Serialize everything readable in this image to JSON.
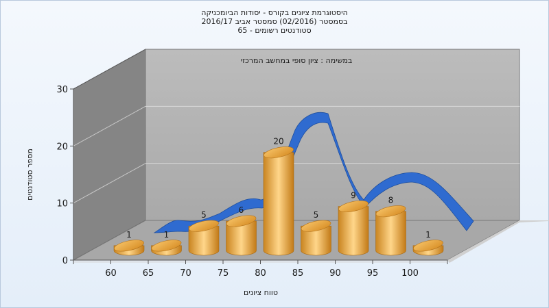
{
  "title_lines": [
    "היסטוגרמת ציונים בקורס - יסודות הביומכניקה",
    "בסמסטר  (02/2016)  סמסטר אביב 2016/17",
    "סטודנטים רשומים - 65"
  ],
  "chart_data": {
    "type": "bar",
    "subtitle": "במשימה : ציון סופי במחשב המרכזי",
    "xlabel": "טווח ציונים",
    "ylabel": "מספר סטודנטים",
    "categories": [
      "60",
      "65",
      "70",
      "75",
      "80",
      "85",
      "90",
      "95",
      "100"
    ],
    "values": [
      1,
      1,
      5,
      6,
      20,
      5,
      9,
      8,
      1
    ],
    "ylim": [
      0,
      30
    ],
    "yticks": [
      "0",
      "10",
      "20",
      "30"
    ],
    "grid": true,
    "curve": "smoothed distribution ribbon",
    "colors": {
      "bar": "#e9a23b",
      "curve": "#2f6fcf",
      "back_wall": "#b3b3b3",
      "side_wall": "#808080",
      "floor": "#a6a6a6"
    }
  }
}
